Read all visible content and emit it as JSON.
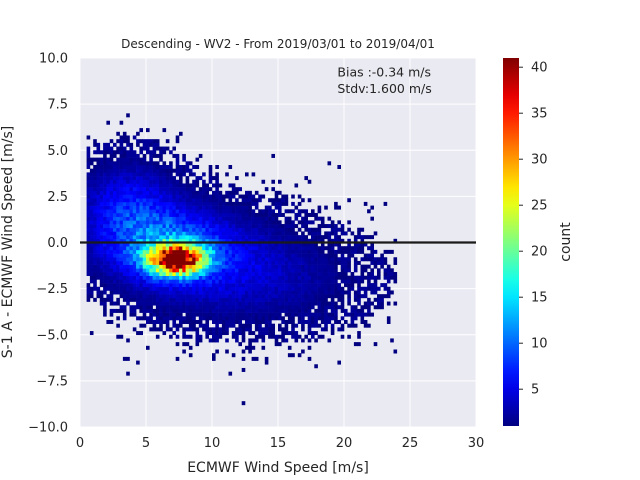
{
  "chart_data": {
    "type": "heatmap",
    "title": "Descending - WV2 - From 2019/03/01 to 2019/04/01",
    "xlabel": "ECMWF Wind Speed [m/s]",
    "ylabel": "S-1 A - ECMWF Wind Speed [m/s]",
    "xlim": [
      0,
      30
    ],
    "ylim": [
      -10,
      10
    ],
    "x_ticks": [
      0,
      5,
      10,
      15,
      20,
      25,
      30
    ],
    "x_tick_labels": [
      "0",
      "5",
      "10",
      "15",
      "20",
      "25",
      "30"
    ],
    "y_ticks": [
      10,
      7.5,
      5,
      2.5,
      0,
      -2.5,
      -5,
      -7.5,
      -10
    ],
    "y_tick_labels": [
      "10.0",
      "7.5",
      "5.0",
      "2.5",
      "0.0",
      "−2.5",
      "−5.0",
      "−7.5",
      "−10.0"
    ],
    "grid": true,
    "zero_line_y": 0,
    "annotations": [
      {
        "text": "Bias :-0.34 m/s",
        "x": 19.5,
        "y": 9.0
      },
      {
        "text": "Stdv:1.600 m/s",
        "x": 19.5,
        "y": 8.1
      }
    ],
    "colorbar": {
      "label": "count",
      "min": 1,
      "max": 41,
      "ticks": [
        5,
        10,
        15,
        20,
        25,
        30,
        35,
        40
      ],
      "tick_labels": [
        "5",
        "10",
        "15",
        "20",
        "25",
        "30",
        "35",
        "40"
      ],
      "colormap": "jet"
    },
    "bin_size": {
      "x": 0.25,
      "y": 0.2
    },
    "density_model": {
      "components": [
        {
          "cx": 7.2,
          "cy": -1.0,
          "sx": 1.4,
          "sy": 0.55,
          "peak": 40
        },
        {
          "cx": 6.5,
          "cy": -0.3,
          "sx": 3.2,
          "sy": 1.4,
          "peak": 9
        },
        {
          "cx": 3.5,
          "cy": 1.8,
          "sx": 2.4,
          "sy": 1.6,
          "peak": 6
        },
        {
          "cx": 11.0,
          "cy": -1.5,
          "sx": 4.2,
          "sy": 1.8,
          "peak": 4
        },
        {
          "cx": 17.0,
          "cy": -2.2,
          "sx": 4.0,
          "sy": 1.6,
          "peak": 1.2
        }
      ]
    }
  },
  "colors": {
    "axes_bg": "#eaeaf2",
    "grid": "#ffffff",
    "zero_line": "#1a1a1a",
    "text": "#262626"
  }
}
